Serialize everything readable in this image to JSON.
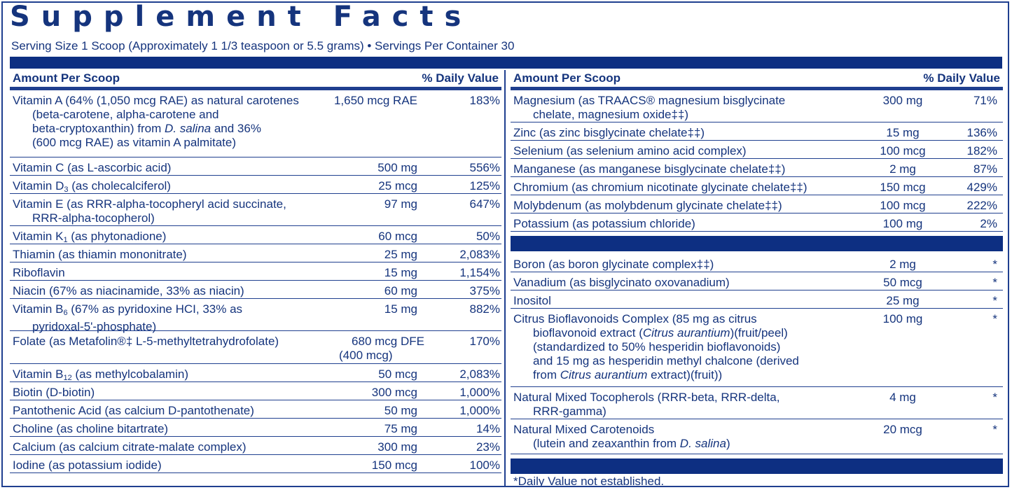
{
  "title": "Supplement Facts",
  "serving": "Serving Size 1 Scoop (Approximately 1 1/3 teaspoon or 5.5 grams) • Servings Per Container 30",
  "header": {
    "amount": "Amount Per Scoop",
    "daily_value": "% Daily Value"
  },
  "left_rows": [
    {
      "lines": [
        "Vitamin A (64% (1,050 mcg RAE) as natural carotenes",
        "(beta-carotene, alpha-carotene and",
        "beta-cryptoxanthin) from D. salina and 36%",
        "(600 mcg RAE) as vitamin A palmitate)"
      ],
      "amount": "1,650 mcg RAE",
      "dv": "183%"
    },
    {
      "lines": [
        "Vitamin C (as L-ascorbic acid)"
      ],
      "amount": "500 mg",
      "dv": "556%"
    },
    {
      "lines": [
        "Vitamin D3 (as cholecalciferol)"
      ],
      "amount": "25 mcg",
      "dv": "125%"
    },
    {
      "lines": [
        "Vitamin E (as RRR-alpha-tocopheryl acid succinate,",
        "RRR-alpha-tocopherol)"
      ],
      "amount": "97 mg",
      "dv": "647%"
    },
    {
      "lines": [
        "Vitamin K1 (as phytonadione)"
      ],
      "amount": "60 mcg",
      "dv": "50%"
    },
    {
      "lines": [
        "Thiamin (as thiamin mononitrate)"
      ],
      "amount": "25 mg",
      "dv": "2,083%"
    },
    {
      "lines": [
        "Riboflavin"
      ],
      "amount": "15 mg",
      "dv": "1,154%"
    },
    {
      "lines": [
        "Niacin (67% as niacinamide, 33% as niacin)"
      ],
      "amount": "60 mg",
      "dv": "375%"
    },
    {
      "lines": [
        "Vitamin B6 (67% as pyridoxine HCI, 33% as",
        "pyridoxal-5'-phosphate)"
      ],
      "amount": "15 mg",
      "dv": "882%"
    },
    {
      "lines": [
        "Folate (as Metafolin®‡ L-5-methyltetrahydrofolate)"
      ],
      "amount": "680 mcg DFE",
      "amount2": "(400 mcg)",
      "dv": "170%"
    },
    {
      "lines": [
        "Vitamin B12 (as methylcobalamin)"
      ],
      "amount": "50 mcg",
      "dv": "2,083%"
    },
    {
      "lines": [
        "Biotin (D-biotin)"
      ],
      "amount": "300 mcg",
      "dv": "1,000%"
    },
    {
      "lines": [
        "Pantothenic Acid (as calcium D-pantothenate)"
      ],
      "amount": "50 mg",
      "dv": "1,000%"
    },
    {
      "lines": [
        "Choline (as choline bitartrate)"
      ],
      "amount": "75 mg",
      "dv": "14%"
    },
    {
      "lines": [
        "Calcium (as calcium citrate-malate complex)"
      ],
      "amount": "300 mg",
      "dv": "23%"
    },
    {
      "lines": [
        "Iodine (as potassium iodide)"
      ],
      "amount": "150 mcg",
      "dv": "100%"
    }
  ],
  "right_rows": [
    {
      "lines": [
        "Magnesium (as TRAACS® magnesium bisglycinate",
        "chelate, magnesium oxide‡‡)"
      ],
      "amount": "300 mg",
      "dv": "71%"
    },
    {
      "lines": [
        "Zinc (as zinc bisglycinate chelate‡‡)"
      ],
      "amount": "15 mg",
      "dv": "136%"
    },
    {
      "lines": [
        "Selenium (as selenium amino acid complex)"
      ],
      "amount": "100 mcg",
      "dv": "182%"
    },
    {
      "lines": [
        "Manganese (as manganese bisglycinate chelate‡‡)"
      ],
      "amount": "2 mg",
      "dv": "87%"
    },
    {
      "lines": [
        "Chromium (as chromium nicotinate glycinate chelate‡‡)"
      ],
      "amount": "150 mcg",
      "dv": "429%"
    },
    {
      "lines": [
        "Molybdenum (as molybdenum glycinate chelate‡‡)"
      ],
      "amount": "100 mcg",
      "dv": "222%"
    },
    {
      "lines": [
        "Potassium (as potassium chloride)"
      ],
      "amount": "100 mg",
      "dv": "2%"
    }
  ],
  "right_rows2": [
    {
      "lines": [
        "Boron (as boron glycinate complex‡‡)"
      ],
      "amount": "2 mg",
      "dv": "*"
    },
    {
      "lines": [
        "Vanadium (as bisglycinato oxovanadium)"
      ],
      "amount": "50 mcg",
      "dv": "*"
    },
    {
      "lines": [
        "Inositol"
      ],
      "amount": "25 mg",
      "dv": "*"
    },
    {
      "lines": [
        "Citrus Bioflavonoids Complex (85 mg as citrus",
        "bioflavonoid extract (Citrus aurantium)(fruit/peel)",
        "(standardized to 50% hesperidin bioflavonoids)",
        "and 15 mg as hesperidin methyl chalcone (derived",
        "from Citrus aurantium extract)(fruit))"
      ],
      "amount": "100 mg",
      "dv": "*"
    },
    {
      "lines": [
        "Natural Mixed Tocopherols (RRR-beta, RRR-delta,",
        "RRR-gamma)"
      ],
      "amount": "4 mg",
      "dv": "*"
    },
    {
      "lines": [
        "Natural Mixed Carotenoids",
        "(lutein and zeaxanthin from D. salina)"
      ],
      "amount": "20 mcg",
      "dv": "*"
    }
  ],
  "footnote": "*Daily Value not established."
}
